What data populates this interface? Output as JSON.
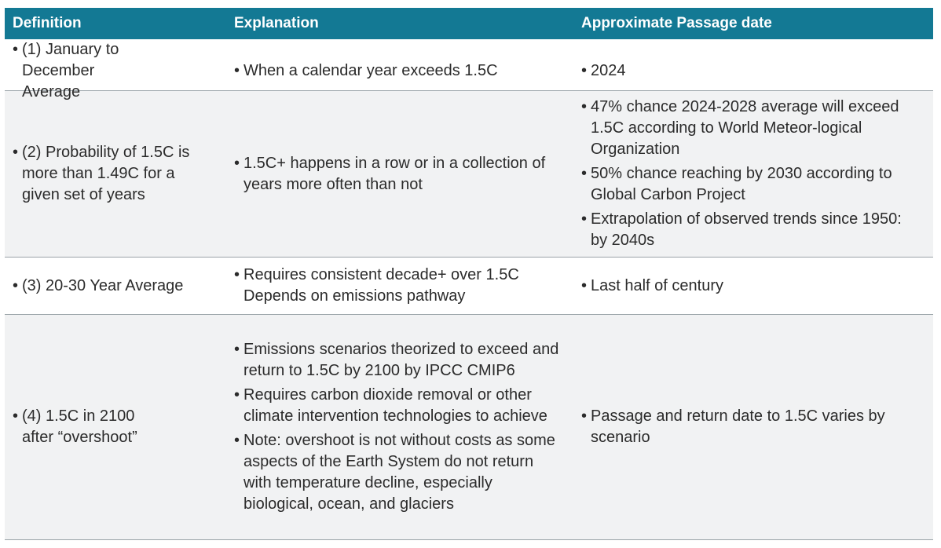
{
  "header": {
    "definition": "Definition",
    "explanation": "Explanation",
    "passage": "Approximate Passage date"
  },
  "bullet": "•",
  "rows": [
    {
      "definition": [
        "(1) January to December Average"
      ],
      "explanation": [
        "When a calendar year exceeds 1.5C"
      ],
      "passage": [
        "2024"
      ]
    },
    {
      "definition": [
        "(2) Probability of 1.5C is more than 1.49C for a given set of years"
      ],
      "explanation": [
        "1.5C+ happens in a row or in a collection of years more often than not"
      ],
      "passage": [
        "47% chance 2024-2028 average will exceed 1.5C according to World Meteor-logical Organization",
        "50% chance reaching by 2030 according to Global Carbon Project",
        "Extrapolation of observed trends since 1950: by 2040s"
      ]
    },
    {
      "definition": [
        "(3) 20-30 Year Average"
      ],
      "explanation": [
        "Requires consistent decade+ over 1.5C Depends on emissions pathway"
      ],
      "passage": [
        "Last half of century"
      ]
    },
    {
      "definition": [
        "(4) 1.5C in 2100 after “overshoot”"
      ],
      "explanation": [
        "Emissions scenarios theorized to exceed and return to 1.5C by 2100 by IPCC CMIP6",
        "Requires carbon dioxide removal or other climate intervention technologies to achieve",
        "Note: overshoot is not without costs as some aspects of the Earth System do not return with temperature decline, especially biological, ocean, and glaciers"
      ],
      "passage": [
        "Passage and return date to 1.5C varies by scenario"
      ]
    }
  ]
}
